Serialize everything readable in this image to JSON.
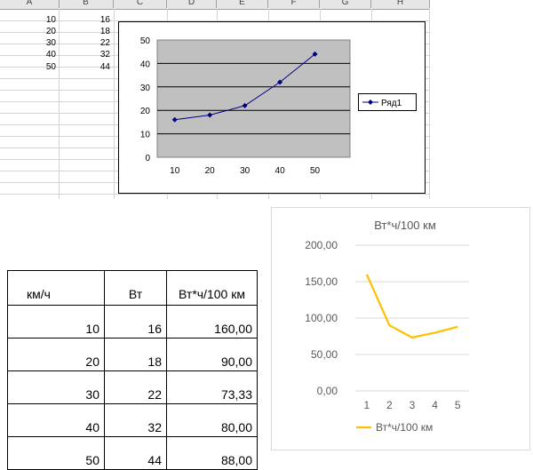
{
  "sheet": {
    "col_headers": [
      "A",
      "B",
      "C",
      "D",
      "E",
      "F",
      "G",
      "H"
    ],
    "rows": [
      {
        "a": "10",
        "b": "16"
      },
      {
        "a": "20",
        "b": "18"
      },
      {
        "a": "30",
        "b": "22"
      },
      {
        "a": "40",
        "b": "32"
      },
      {
        "a": "50",
        "b": "44"
      }
    ]
  },
  "table": {
    "headers": [
      "км/ч",
      "Вт",
      "Вт*ч/100 км"
    ],
    "rows": [
      [
        "10",
        "16",
        "160,00"
      ],
      [
        "20",
        "18",
        "90,00"
      ],
      [
        "30",
        "22",
        "73,33"
      ],
      [
        "40",
        "32",
        "80,00"
      ],
      [
        "50",
        "44",
        "88,00"
      ]
    ]
  },
  "chart_data": [
    {
      "type": "line",
      "categories": [
        "10",
        "20",
        "30",
        "40",
        "50"
      ],
      "series": [
        {
          "name": "Ряд1",
          "values": [
            16,
            18,
            22,
            32,
            44
          ],
          "color": "#000080"
        }
      ],
      "title": "",
      "xlabel": "",
      "ylabel": "",
      "ylim": [
        0,
        50
      ],
      "yticks": [
        "0",
        "10",
        "20",
        "30",
        "40",
        "50"
      ],
      "grid": true,
      "plot_background": "#c0c0c0",
      "legend": "right"
    },
    {
      "type": "line",
      "title": "Вт*ч/100 км",
      "categories": [
        "1",
        "2",
        "3",
        "4",
        "5"
      ],
      "series": [
        {
          "name": "Вт*ч/100 км",
          "values": [
            160,
            90,
            73.33,
            80,
            88
          ],
          "color": "#ffc000"
        }
      ],
      "xlabel": "",
      "ylabel": "",
      "ylim": [
        0,
        200
      ],
      "yticks": [
        "0,00",
        "50,00",
        "100,00",
        "150,00",
        "200,00"
      ],
      "grid": true,
      "legend": "bottom"
    }
  ]
}
